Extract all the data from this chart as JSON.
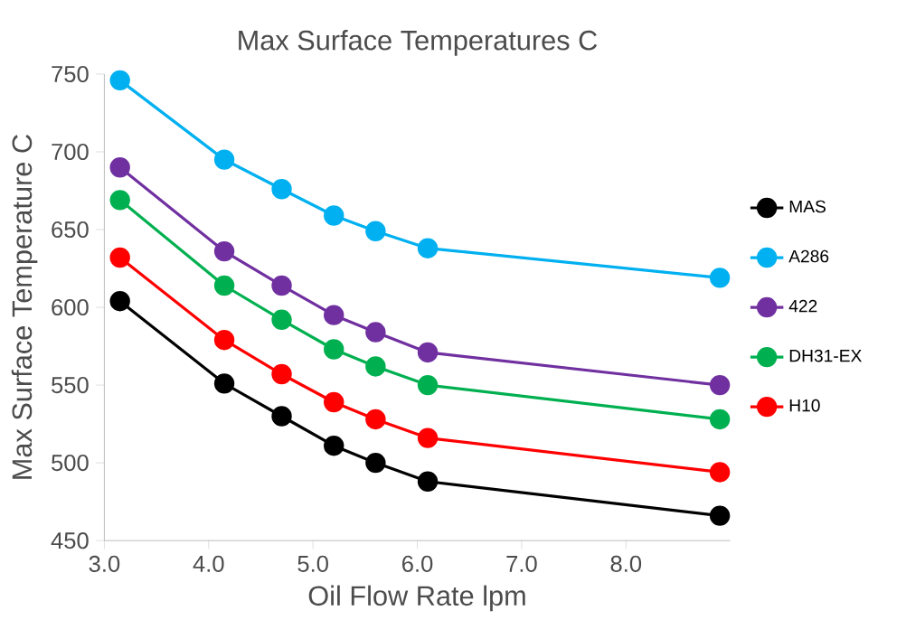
{
  "chart_data": {
    "type": "line",
    "title": "Max Surface Temperatures C",
    "xlabel": "Oil Flow Rate lpm",
    "ylabel": "Max Surface Temperature C",
    "x": [
      3.15,
      4.15,
      4.7,
      5.2,
      5.6,
      6.1,
      8.9
    ],
    "series": [
      {
        "name": "MAS",
        "color": "#000000",
        "values": [
          604,
          551,
          530,
          511,
          500,
          488,
          466
        ]
      },
      {
        "name": "A286",
        "color": "#00b0f0",
        "values": [
          746,
          695,
          676,
          659,
          649,
          638,
          619
        ]
      },
      {
        "name": "422",
        "color": "#7030a0",
        "values": [
          690,
          636,
          614,
          595,
          584,
          571,
          550
        ]
      },
      {
        "name": "DH31-EX",
        "color": "#00b050",
        "values": [
          669,
          614,
          592,
          573,
          562,
          550,
          528
        ]
      },
      {
        "name": "H10",
        "color": "#ff0000",
        "values": [
          632,
          579,
          557,
          539,
          528,
          516,
          494
        ]
      }
    ],
    "xlim": [
      3,
      9
    ],
    "ylim": [
      450,
      750
    ],
    "xticks": [
      {
        "value": 3,
        "label": "3.0"
      },
      {
        "value": 4,
        "label": "4.0"
      },
      {
        "value": 5,
        "label": "5.0"
      },
      {
        "value": 6,
        "label": "6.0"
      },
      {
        "value": 7,
        "label": "7.0"
      },
      {
        "value": 8,
        "label": "8.0"
      }
    ],
    "yticks": [
      450,
      500,
      550,
      600,
      650,
      700,
      750
    ],
    "legend": "right",
    "marker": "circle",
    "line_style": "solid",
    "grid": false
  }
}
